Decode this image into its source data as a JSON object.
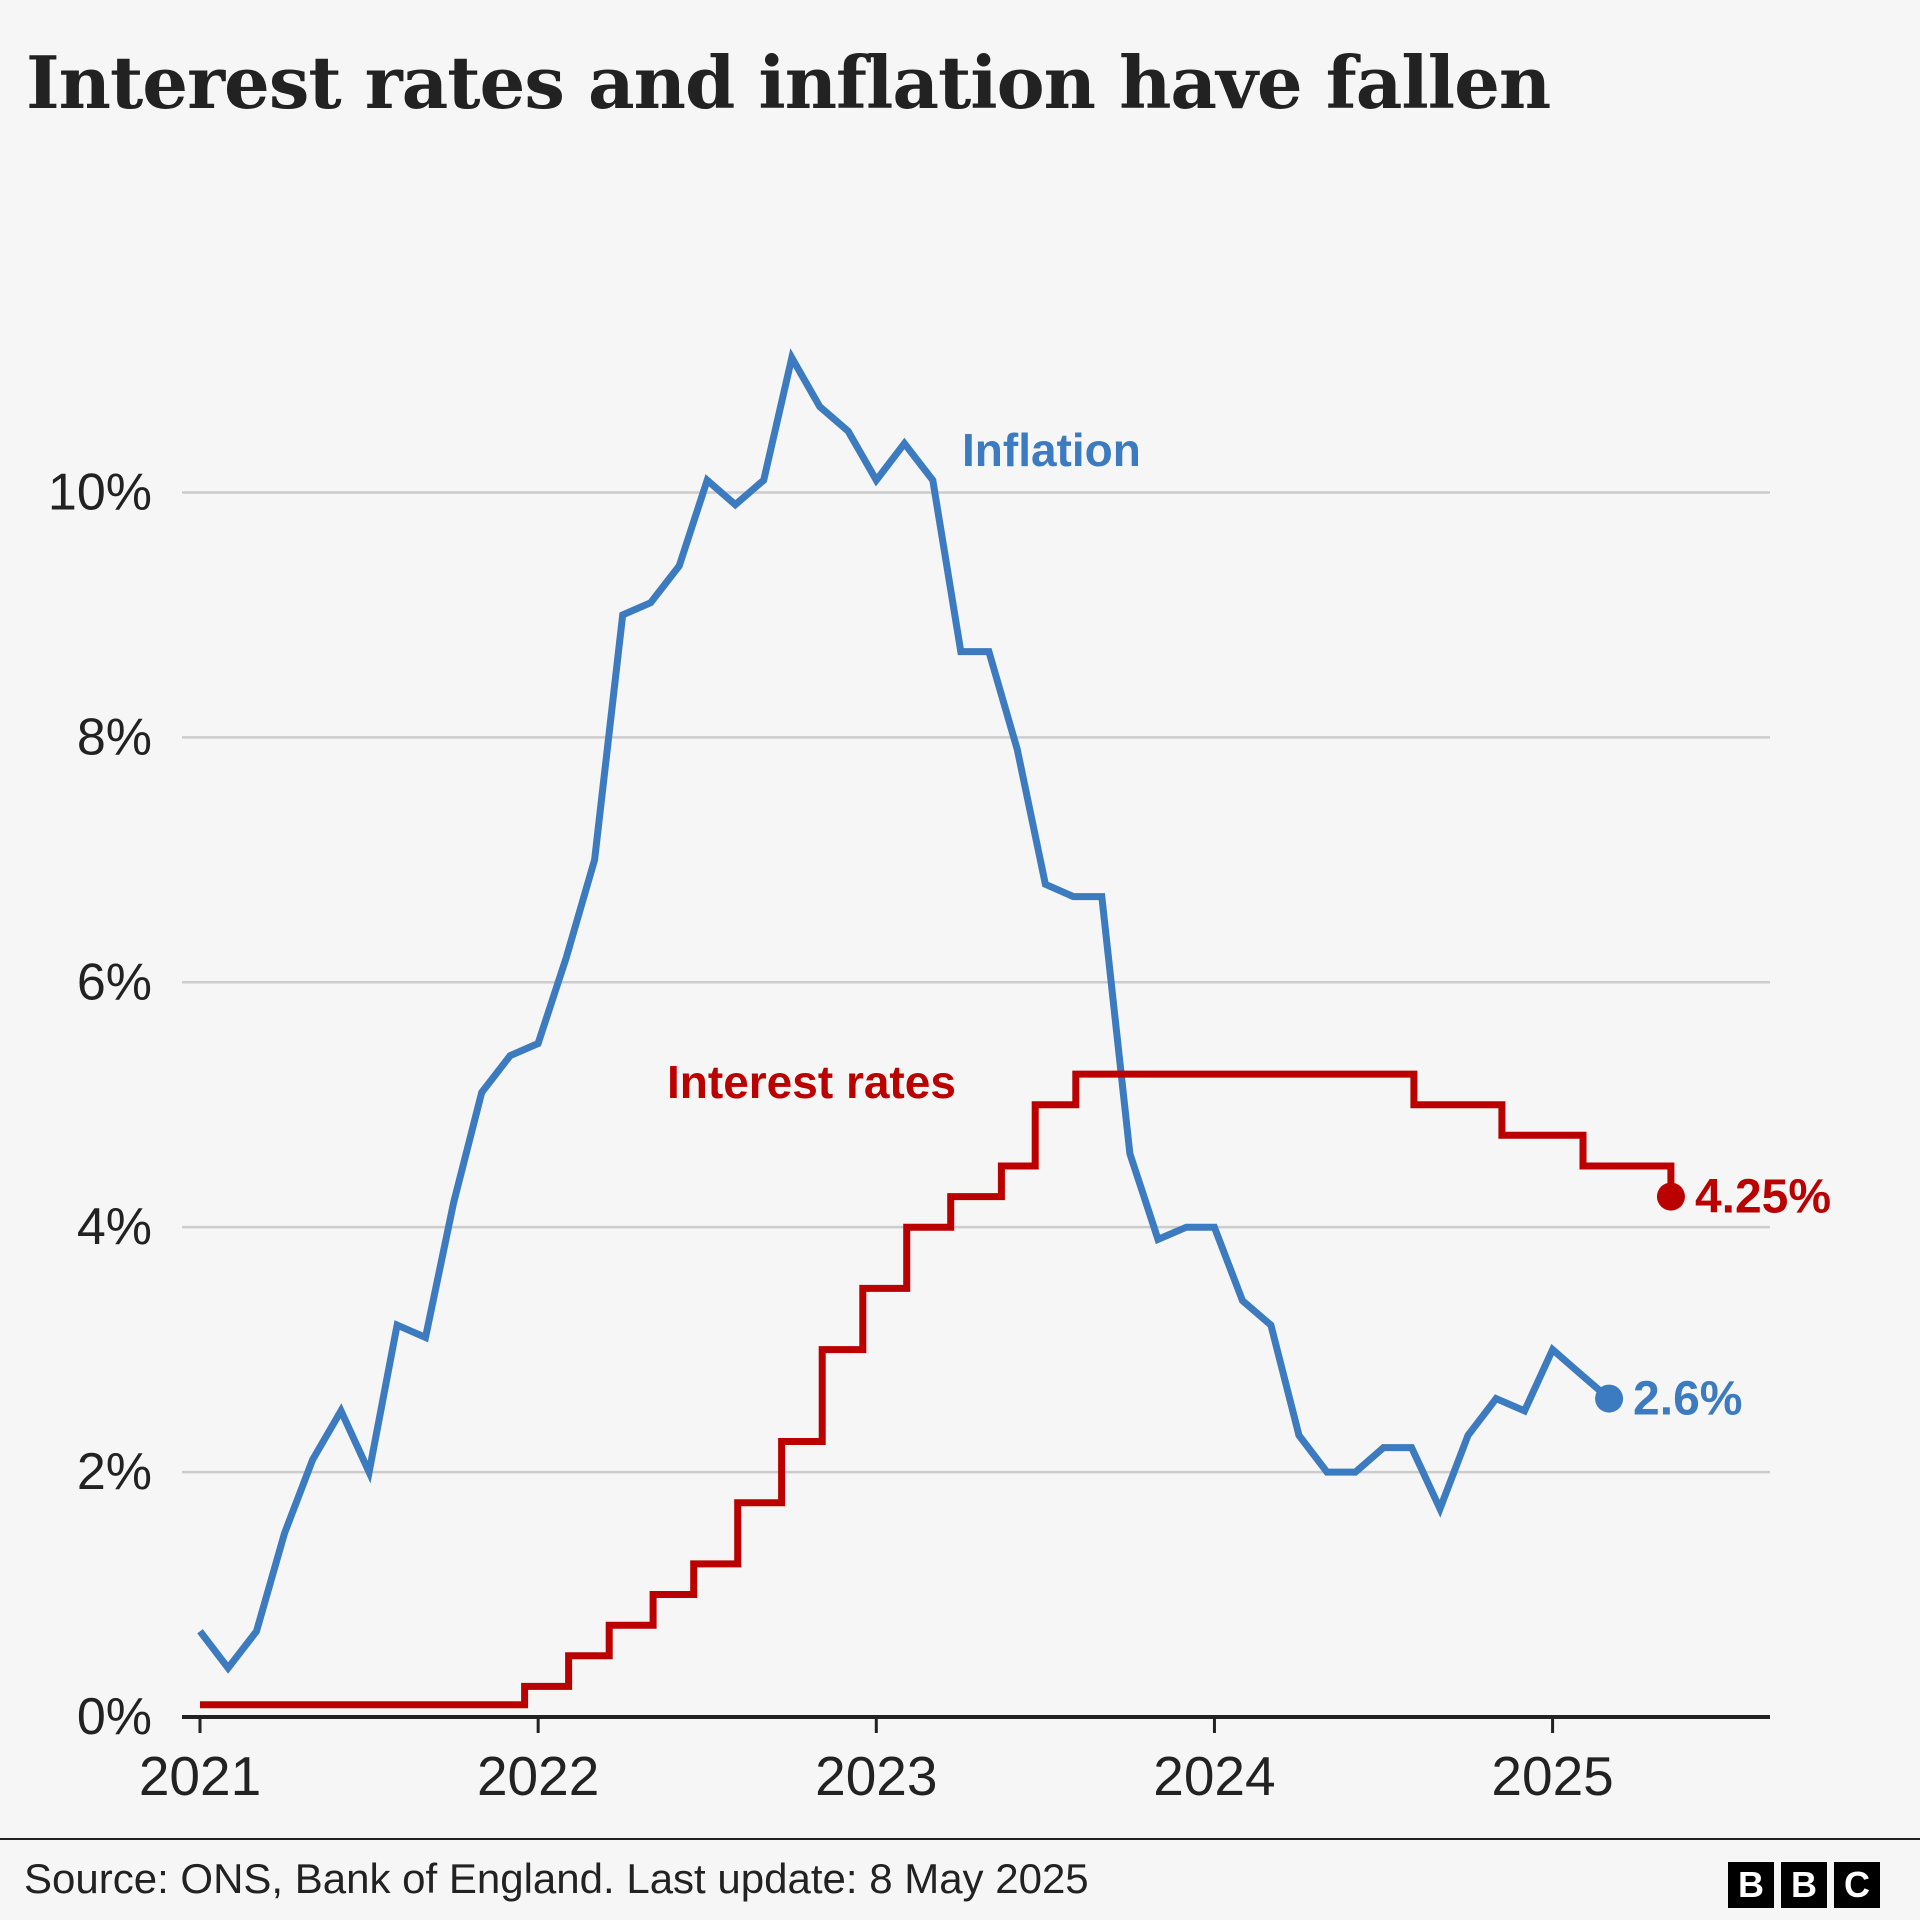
{
  "title": "Interest rates and inflation have fallen",
  "footer": {
    "source": "Source: ONS, Bank of England. Last update: 8 May 2025",
    "logo_letters": [
      "B",
      "B",
      "C"
    ]
  },
  "colors": {
    "inflation": "#3c7bbf",
    "interest": "#bb0000",
    "grid": "#cccccc",
    "axis": "#222222",
    "text": "#222222",
    "background": "#f6f6f6"
  },
  "chart_data": {
    "type": "line",
    "title": "Interest rates and inflation have fallen",
    "xlabel": "",
    "ylabel": "",
    "x_ticks": [
      {
        "value": 2021,
        "label": "2021"
      },
      {
        "value": 2022,
        "label": "2022"
      },
      {
        "value": 2023,
        "label": "2023"
      },
      {
        "value": 2024,
        "label": "2024"
      },
      {
        "value": 2025,
        "label": "2025"
      }
    ],
    "y_ticks": [
      {
        "value": 0,
        "label": "0%"
      },
      {
        "value": 2,
        "label": "2%"
      },
      {
        "value": 4,
        "label": "4%"
      },
      {
        "value": 6,
        "label": "6%"
      },
      {
        "value": 8,
        "label": "8%"
      },
      {
        "value": 10,
        "label": "10%"
      }
    ],
    "xlim": [
      2021.0,
      2025.64
    ],
    "ylim": [
      0,
      11
    ],
    "grid": true,
    "series": [
      {
        "name": "Inflation",
        "label": "Inflation",
        "line_style": "linear",
        "x": [
          2021.0,
          2021.083,
          2021.167,
          2021.25,
          2021.333,
          2021.417,
          2021.5,
          2021.583,
          2021.667,
          2021.75,
          2021.833,
          2021.917,
          2022.0,
          2022.083,
          2022.167,
          2022.25,
          2022.333,
          2022.417,
          2022.5,
          2022.583,
          2022.667,
          2022.75,
          2022.833,
          2022.917,
          2023.0,
          2023.083,
          2023.167,
          2023.25,
          2023.333,
          2023.417,
          2023.5,
          2023.583,
          2023.667,
          2023.75,
          2023.833,
          2023.917,
          2024.0,
          2024.083,
          2024.167,
          2024.25,
          2024.333,
          2024.417,
          2024.5,
          2024.583,
          2024.667,
          2024.75,
          2024.833,
          2024.917,
          2025.0,
          2025.083,
          2025.167
        ],
        "values": [
          0.7,
          0.4,
          0.7,
          1.5,
          2.1,
          2.5,
          2.0,
          3.2,
          3.1,
          4.2,
          5.1,
          5.4,
          5.5,
          6.2,
          7.0,
          9.0,
          9.1,
          9.4,
          10.1,
          9.9,
          10.1,
          11.1,
          10.7,
          10.5,
          10.1,
          10.4,
          10.1,
          8.7,
          8.7,
          7.9,
          6.8,
          6.7,
          6.7,
          4.6,
          3.9,
          4.0,
          4.0,
          3.4,
          3.2,
          2.3,
          2.0,
          2.0,
          2.2,
          2.2,
          1.7,
          2.3,
          2.6,
          2.5,
          3.0,
          2.8,
          2.6
        ],
        "end_label": "2.6%"
      },
      {
        "name": "Interest rates",
        "label": "Interest rates",
        "line_style": "step-after",
        "x": [
          2021.0,
          2021.96,
          2022.09,
          2022.21,
          2022.34,
          2022.46,
          2022.59,
          2022.72,
          2022.84,
          2022.96,
          2023.09,
          2023.22,
          2023.37,
          2023.47,
          2023.59,
          2024.59,
          2024.85,
          2025.09,
          2025.35
        ],
        "values": [
          0.1,
          0.25,
          0.5,
          0.75,
          1.0,
          1.25,
          1.75,
          2.25,
          3.0,
          3.5,
          4.0,
          4.25,
          4.5,
          5.0,
          5.25,
          5.0,
          4.75,
          4.5,
          4.25
        ],
        "end_label": "4.25%"
      }
    ]
  }
}
